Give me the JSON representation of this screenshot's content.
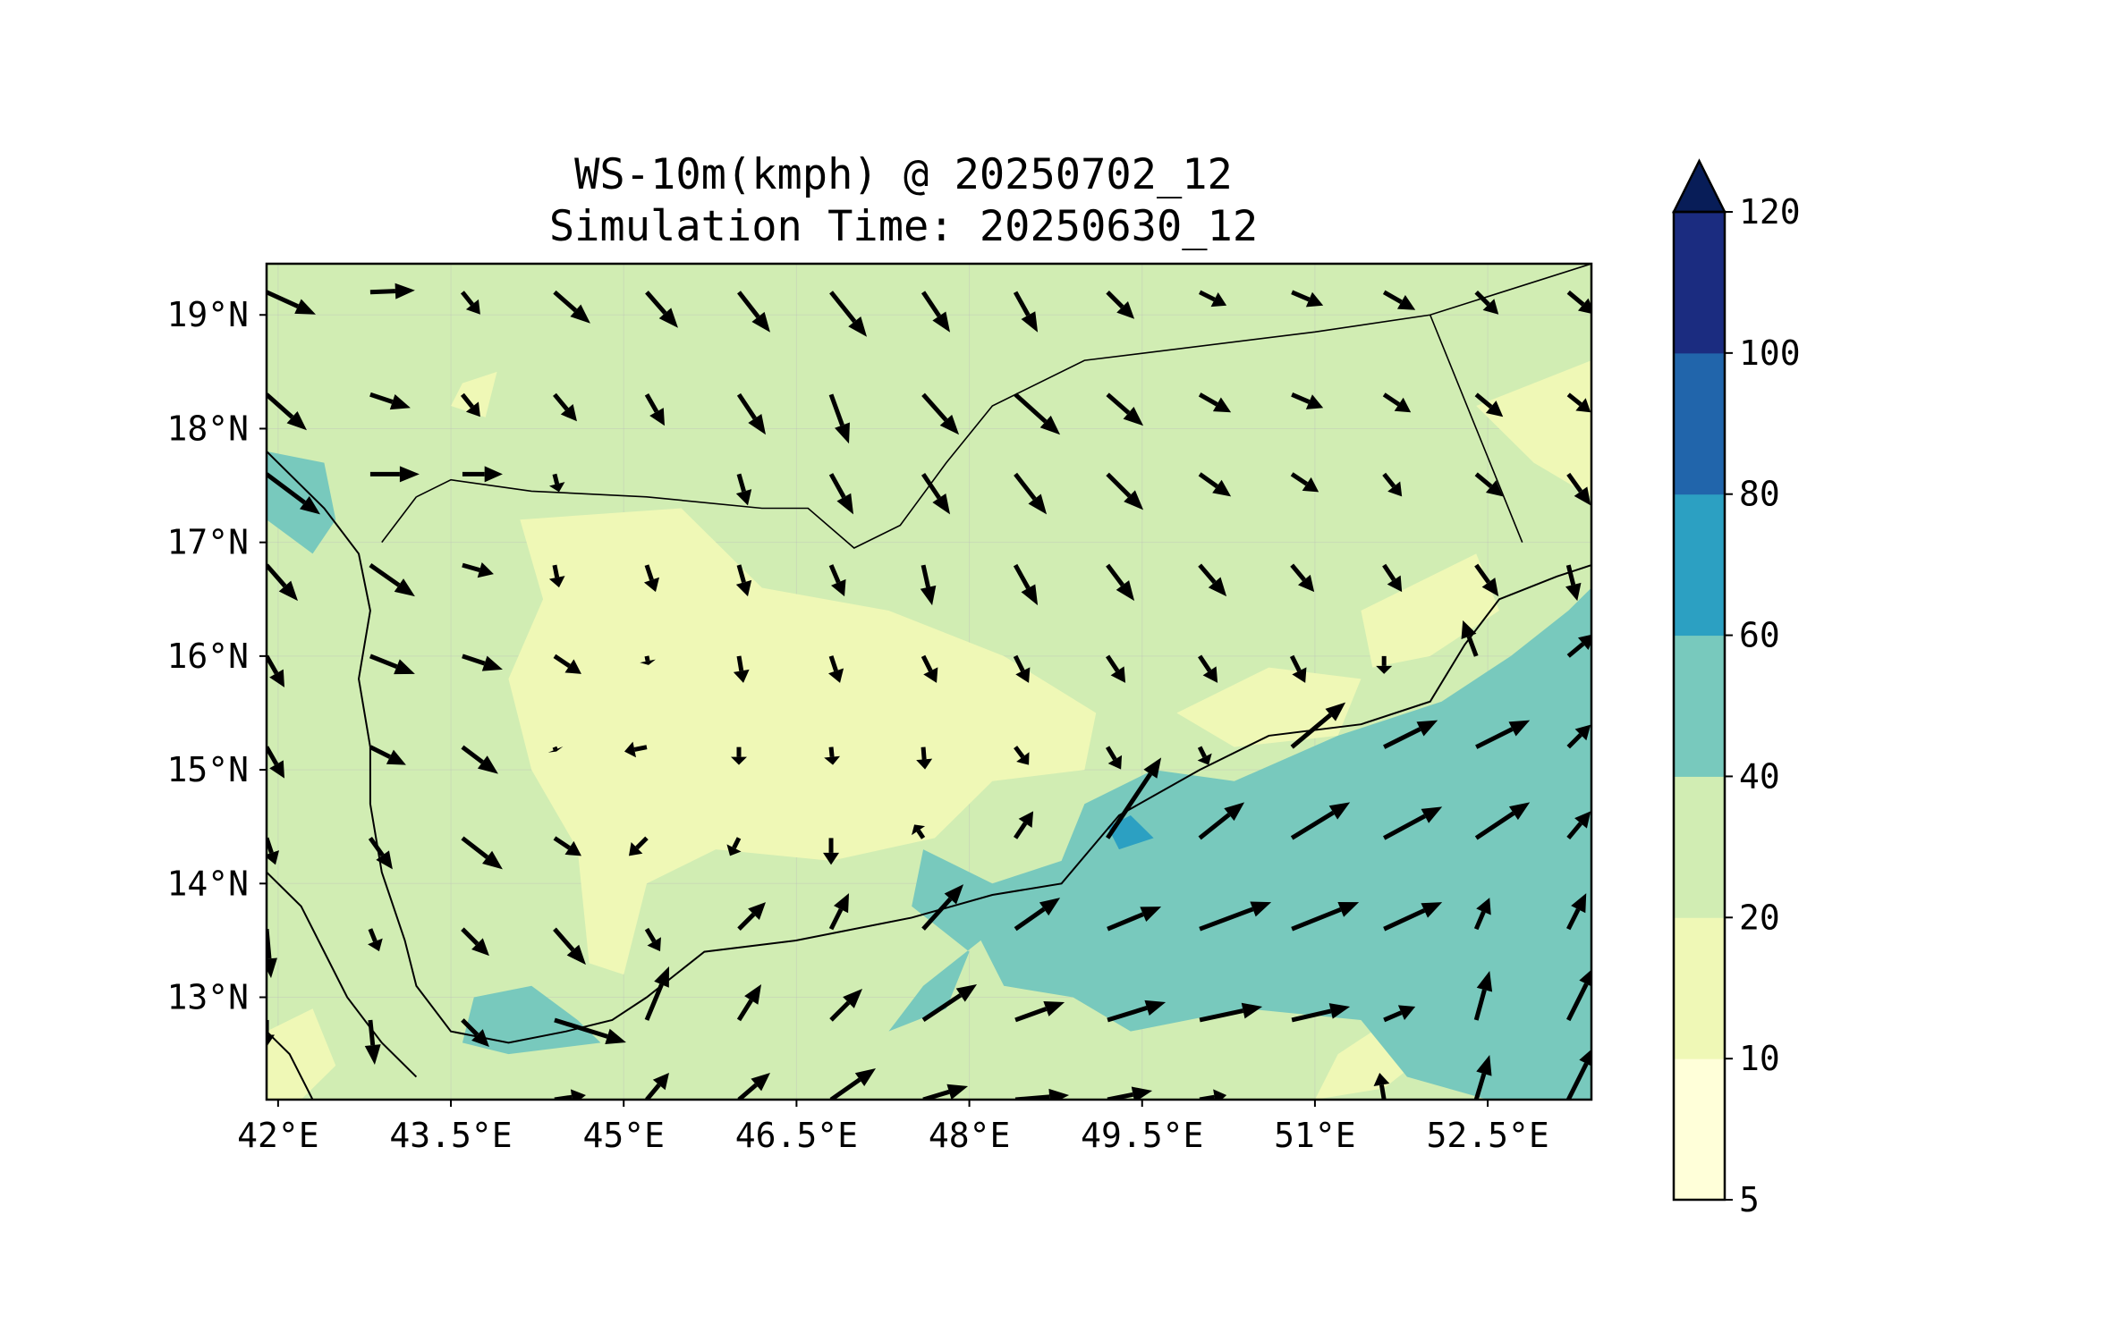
{
  "title_line1": "WS-10m(kmph) @ 20250702_12",
  "title_line2": "Simulation Time: 20250630_12",
  "map": {
    "lon_range": [
      41.9,
      53.4
    ],
    "lat_range": [
      12.1,
      19.45
    ],
    "lon_ticks": [
      {
        "value": 42.0,
        "label": "42°E"
      },
      {
        "value": 43.5,
        "label": "43.5°E"
      },
      {
        "value": 45.0,
        "label": "45°E"
      },
      {
        "value": 46.5,
        "label": "46.5°E"
      },
      {
        "value": 48.0,
        "label": "48°E"
      },
      {
        "value": 49.5,
        "label": "49.5°E"
      },
      {
        "value": 51.0,
        "label": "51°E"
      },
      {
        "value": 52.5,
        "label": "52.5°E"
      }
    ],
    "lat_ticks": [
      {
        "value": 19.0,
        "label": "19°N"
      },
      {
        "value": 18.0,
        "label": "18°N"
      },
      {
        "value": 17.0,
        "label": "17°N"
      },
      {
        "value": 16.0,
        "label": "16°N"
      },
      {
        "value": 15.0,
        "label": "15°N"
      },
      {
        "value": 14.0,
        "label": "14°N"
      },
      {
        "value": 13.0,
        "label": "13°N"
      }
    ],
    "background_class_color": "#d1edb3"
  },
  "colorbar": {
    "levels": [
      5,
      10,
      20,
      40,
      60,
      80,
      100,
      120
    ],
    "labels": [
      "5",
      "10",
      "20",
      "40",
      "60",
      "80",
      "100",
      "120"
    ],
    "colors": [
      "#ffffd9",
      "#eff8b6",
      "#d1edb3",
      "#78c9bd",
      "#2ca0c2",
      "#2165ab",
      "#1b2c80"
    ],
    "extend_color": "#081d58"
  },
  "speed_regions": [
    {
      "level": "10-20",
      "color": "#eff8b6",
      "points": [
        [
          44.1,
          17.2
        ],
        [
          45.5,
          17.3
        ],
        [
          46.2,
          16.6
        ],
        [
          47.3,
          16.4
        ],
        [
          48.3,
          16.0
        ],
        [
          49.1,
          15.5
        ],
        [
          49.0,
          15.0
        ],
        [
          48.2,
          14.9
        ],
        [
          47.7,
          14.4
        ],
        [
          46.8,
          14.2
        ],
        [
          45.8,
          14.3
        ],
        [
          45.2,
          14.0
        ],
        [
          45.0,
          13.2
        ],
        [
          44.7,
          13.3
        ],
        [
          44.6,
          14.3
        ],
        [
          44.2,
          15.0
        ],
        [
          44.0,
          15.8
        ],
        [
          44.3,
          16.5
        ]
      ]
    },
    {
      "level": "10-20",
      "color": "#eff8b6",
      "points": [
        [
          43.6,
          18.4
        ],
        [
          43.9,
          18.5
        ],
        [
          43.8,
          18.1
        ],
        [
          43.5,
          18.2
        ]
      ]
    },
    {
      "level": "10-20",
      "color": "#eff8b6",
      "points": [
        [
          52.4,
          18.2
        ],
        [
          53.4,
          18.6
        ],
        [
          53.4,
          17.4
        ],
        [
          52.9,
          17.7
        ]
      ]
    },
    {
      "level": "10-20",
      "color": "#eff8b6",
      "points": [
        [
          51.4,
          16.4
        ],
        [
          52.4,
          16.9
        ],
        [
          52.6,
          16.4
        ],
        [
          52.0,
          16.0
        ],
        [
          51.5,
          15.9
        ]
      ]
    },
    {
      "level": "10-20",
      "color": "#eff8b6",
      "points": [
        [
          51.2,
          12.5
        ],
        [
          51.8,
          12.9
        ],
        [
          52.3,
          13.3
        ],
        [
          52.1,
          12.6
        ],
        [
          51.6,
          12.2
        ],
        [
          51.0,
          12.1
        ]
      ]
    },
    {
      "level": "10-20",
      "color": "#eff8b6",
      "points": [
        [
          49.8,
          15.5
        ],
        [
          50.6,
          15.9
        ],
        [
          51.4,
          15.8
        ],
        [
          51.2,
          15.3
        ],
        [
          50.3,
          15.2
        ]
      ]
    },
    {
      "level": "10-20",
      "color": "#eff8b6",
      "points": [
        [
          41.9,
          12.7
        ],
        [
          42.3,
          12.9
        ],
        [
          42.5,
          12.4
        ],
        [
          42.2,
          12.1
        ],
        [
          41.9,
          12.1
        ]
      ]
    },
    {
      "level": "40-60",
      "color": "#78c9bd",
      "points": [
        [
          49.0,
          14.7
        ],
        [
          49.6,
          15.0
        ],
        [
          50.3,
          14.9
        ],
        [
          51.2,
          15.3
        ],
        [
          52.1,
          15.6
        ],
        [
          52.7,
          16.0
        ],
        [
          53.2,
          16.4
        ],
        [
          53.4,
          16.6
        ],
        [
          53.4,
          12.1
        ],
        [
          52.5,
          12.1
        ],
        [
          51.8,
          12.3
        ],
        [
          51.4,
          12.8
        ],
        [
          50.4,
          12.9
        ],
        [
          49.4,
          12.7
        ],
        [
          48.9,
          13.0
        ],
        [
          48.3,
          13.1
        ],
        [
          48.1,
          13.5
        ],
        [
          47.6,
          13.1
        ],
        [
          47.3,
          12.7
        ],
        [
          47.8,
          12.9
        ],
        [
          48.0,
          13.4
        ],
        [
          47.5,
          13.8
        ],
        [
          47.6,
          14.3
        ],
        [
          48.2,
          14.0
        ],
        [
          48.8,
          14.2
        ]
      ]
    },
    {
      "level": "40-60",
      "color": "#78c9bd",
      "points": [
        [
          41.9,
          17.8
        ],
        [
          42.4,
          17.7
        ],
        [
          42.5,
          17.2
        ],
        [
          42.3,
          16.9
        ],
        [
          41.9,
          17.2
        ]
      ]
    },
    {
      "level": "40-60",
      "color": "#78c9bd",
      "points": [
        [
          43.7,
          13.0
        ],
        [
          44.2,
          13.1
        ],
        [
          44.6,
          12.8
        ],
        [
          44.8,
          12.6
        ],
        [
          44.0,
          12.5
        ],
        [
          43.6,
          12.6
        ]
      ]
    },
    {
      "level": "60-80",
      "color": "#2ca0c2",
      "points": [
        [
          49.2,
          14.5
        ],
        [
          49.4,
          14.6
        ],
        [
          49.6,
          14.4
        ],
        [
          49.3,
          14.3
        ]
      ]
    }
  ],
  "coastlines": [
    [
      [
        41.9,
        17.8
      ],
      [
        42.4,
        17.3
      ],
      [
        42.7,
        16.9
      ],
      [
        42.8,
        16.4
      ],
      [
        42.7,
        15.8
      ],
      [
        42.8,
        15.2
      ],
      [
        42.8,
        14.7
      ],
      [
        42.9,
        14.1
      ],
      [
        43.1,
        13.5
      ],
      [
        43.2,
        13.1
      ],
      [
        43.5,
        12.7
      ],
      [
        44.0,
        12.6
      ],
      [
        44.5,
        12.7
      ],
      [
        44.9,
        12.8
      ],
      [
        45.2,
        13.0
      ],
      [
        45.7,
        13.4
      ],
      [
        46.5,
        13.5
      ],
      [
        47.5,
        13.7
      ],
      [
        48.2,
        13.9
      ],
      [
        48.8,
        14.0
      ],
      [
        49.3,
        14.6
      ],
      [
        50.0,
        15.0
      ],
      [
        50.6,
        15.3
      ],
      [
        51.4,
        15.4
      ],
      [
        52.0,
        15.6
      ],
      [
        52.3,
        16.1
      ],
      [
        52.6,
        16.5
      ],
      [
        53.1,
        16.7
      ],
      [
        53.4,
        16.8
      ]
    ],
    [
      [
        41.9,
        14.1
      ],
      [
        42.2,
        13.8
      ],
      [
        42.4,
        13.4
      ],
      [
        42.6,
        13.0
      ],
      [
        42.9,
        12.6
      ],
      [
        43.2,
        12.3
      ]
    ],
    [
      [
        41.9,
        12.7
      ],
      [
        42.1,
        12.5
      ],
      [
        42.3,
        12.1
      ]
    ]
  ],
  "borders": [
    [
      [
        43.2,
        17.4
      ],
      [
        43.5,
        17.55
      ],
      [
        44.2,
        17.45
      ],
      [
        45.2,
        17.4
      ],
      [
        46.2,
        17.3
      ],
      [
        46.6,
        17.3
      ],
      [
        47.0,
        16.95
      ],
      [
        47.4,
        17.15
      ],
      [
        47.8,
        17.7
      ],
      [
        48.2,
        18.2
      ],
      [
        49.0,
        18.6
      ],
      [
        51.0,
        18.85
      ],
      [
        52.0,
        19.0
      ],
      [
        53.4,
        19.45
      ]
    ],
    [
      [
        52.0,
        19.0
      ],
      [
        52.8,
        17.0
      ]
    ],
    [
      [
        43.2,
        17.4
      ],
      [
        42.9,
        17.0
      ]
    ]
  ],
  "wind_vectors": [
    [
      41.9,
      19.2,
      0.55,
      -0.25
    ],
    [
      42.8,
      19.2,
      0.5,
      0.02
    ],
    [
      43.6,
      19.2,
      0.2,
      -0.25
    ],
    [
      44.4,
      19.2,
      0.4,
      -0.35
    ],
    [
      45.2,
      19.2,
      0.35,
      -0.4
    ],
    [
      46.0,
      19.2,
      0.35,
      -0.45
    ],
    [
      46.8,
      19.2,
      0.4,
      -0.5
    ],
    [
      47.6,
      19.2,
      0.3,
      -0.45
    ],
    [
      48.4,
      19.2,
      0.25,
      -0.45
    ],
    [
      49.2,
      19.2,
      0.3,
      -0.3
    ],
    [
      50.0,
      19.2,
      0.3,
      -0.15
    ],
    [
      50.8,
      19.2,
      0.35,
      -0.15
    ],
    [
      51.6,
      19.2,
      0.35,
      -0.2
    ],
    [
      52.4,
      19.2,
      0.25,
      -0.25
    ],
    [
      53.2,
      19.2,
      0.3,
      -0.25
    ],
    [
      41.9,
      18.3,
      0.45,
      -0.4
    ],
    [
      42.8,
      18.3,
      0.45,
      -0.15
    ],
    [
      43.6,
      18.3,
      0.2,
      -0.25
    ],
    [
      44.4,
      18.3,
      0.25,
      -0.3
    ],
    [
      45.2,
      18.3,
      0.2,
      -0.35
    ],
    [
      46.0,
      18.3,
      0.3,
      -0.45
    ],
    [
      46.8,
      18.3,
      0.2,
      -0.55
    ],
    [
      47.6,
      18.3,
      0.4,
      -0.45
    ],
    [
      48.4,
      18.3,
      0.5,
      -0.45
    ],
    [
      49.2,
      18.3,
      0.4,
      -0.35
    ],
    [
      50.0,
      18.3,
      0.35,
      -0.2
    ],
    [
      50.8,
      18.3,
      0.35,
      -0.15
    ],
    [
      51.6,
      18.3,
      0.3,
      -0.2
    ],
    [
      52.4,
      18.3,
      0.3,
      -0.25
    ],
    [
      53.2,
      18.3,
      0.25,
      -0.2
    ],
    [
      41.9,
      17.6,
      0.6,
      -0.45
    ],
    [
      42.8,
      17.6,
      0.55,
      0.0
    ],
    [
      43.6,
      17.6,
      0.45,
      0.0
    ],
    [
      44.4,
      17.6,
      0.05,
      -0.2
    ],
    [
      46.0,
      17.6,
      0.1,
      -0.35
    ],
    [
      46.8,
      17.6,
      0.25,
      -0.45
    ],
    [
      47.6,
      17.6,
      0.3,
      -0.45
    ],
    [
      48.4,
      17.6,
      0.35,
      -0.45
    ],
    [
      49.2,
      17.6,
      0.4,
      -0.4
    ],
    [
      50.0,
      17.6,
      0.35,
      -0.25
    ],
    [
      50.8,
      17.6,
      0.3,
      -0.2
    ],
    [
      51.6,
      17.6,
      0.2,
      -0.25
    ],
    [
      52.4,
      17.6,
      0.3,
      -0.25
    ],
    [
      53.2,
      17.6,
      0.25,
      -0.35
    ],
    [
      41.9,
      16.8,
      0.35,
      -0.4
    ],
    [
      42.8,
      16.8,
      0.5,
      -0.35
    ],
    [
      43.6,
      16.8,
      0.35,
      -0.1
    ],
    [
      44.4,
      16.8,
      0.05,
      -0.25
    ],
    [
      45.2,
      16.8,
      0.1,
      -0.3
    ],
    [
      46.0,
      16.8,
      0.1,
      -0.35
    ],
    [
      46.8,
      16.8,
      0.15,
      -0.35
    ],
    [
      47.6,
      16.8,
      0.1,
      -0.45
    ],
    [
      48.4,
      16.8,
      0.25,
      -0.45
    ],
    [
      49.2,
      16.8,
      0.3,
      -0.4
    ],
    [
      50.0,
      16.8,
      0.3,
      -0.35
    ],
    [
      50.8,
      16.8,
      0.25,
      -0.3
    ],
    [
      51.6,
      16.8,
      0.2,
      -0.3
    ],
    [
      52.4,
      16.8,
      0.25,
      -0.35
    ],
    [
      53.2,
      16.8,
      0.1,
      -0.4
    ],
    [
      41.9,
      16.0,
      0.2,
      -0.35
    ],
    [
      42.8,
      16.0,
      0.5,
      -0.2
    ],
    [
      43.6,
      16.0,
      0.45,
      -0.15
    ],
    [
      44.4,
      16.0,
      0.3,
      -0.2
    ],
    [
      45.2,
      16.0,
      0.02,
      -0.1
    ],
    [
      46.0,
      16.0,
      0.05,
      -0.3
    ],
    [
      46.8,
      16.0,
      0.1,
      -0.3
    ],
    [
      47.6,
      16.0,
      0.15,
      -0.3
    ],
    [
      48.4,
      16.0,
      0.15,
      -0.3
    ],
    [
      49.2,
      16.0,
      0.2,
      -0.3
    ],
    [
      50.0,
      16.0,
      0.2,
      -0.3
    ],
    [
      50.8,
      16.0,
      0.15,
      -0.3
    ],
    [
      51.6,
      16.0,
      0.0,
      -0.2
    ],
    [
      52.4,
      16.0,
      -0.15,
      0.4
    ],
    [
      53.2,
      16.0,
      0.3,
      0.25
    ],
    [
      41.9,
      15.2,
      0.2,
      -0.35
    ],
    [
      42.8,
      15.2,
      0.4,
      -0.2
    ],
    [
      43.6,
      15.2,
      0.4,
      -0.3
    ],
    [
      44.4,
      15.2,
      0.02,
      -0.05
    ],
    [
      45.2,
      15.2,
      -0.25,
      -0.05
    ],
    [
      46.0,
      15.2,
      0.0,
      -0.2
    ],
    [
      46.8,
      15.2,
      0.02,
      -0.2
    ],
    [
      47.6,
      15.2,
      0.02,
      -0.25
    ],
    [
      48.4,
      15.2,
      0.15,
      -0.2
    ],
    [
      49.2,
      15.2,
      0.15,
      -0.25
    ],
    [
      50.0,
      15.2,
      0.1,
      -0.2
    ],
    [
      50.8,
      15.2,
      0.6,
      0.5
    ],
    [
      51.6,
      15.2,
      0.6,
      0.3
    ],
    [
      52.4,
      15.2,
      0.6,
      0.3
    ],
    [
      53.2,
      15.2,
      0.25,
      0.25
    ],
    [
      41.9,
      14.4,
      0.1,
      -0.3
    ],
    [
      42.8,
      14.4,
      0.25,
      -0.35
    ],
    [
      43.6,
      14.4,
      0.45,
      -0.35
    ],
    [
      44.4,
      14.4,
      0.3,
      -0.2
    ],
    [
      45.2,
      14.4,
      -0.2,
      -0.2
    ],
    [
      46.0,
      14.4,
      -0.1,
      -0.2
    ],
    [
      46.8,
      14.4,
      0.0,
      -0.3
    ],
    [
      47.6,
      14.4,
      -0.1,
      0.15
    ],
    [
      48.4,
      14.4,
      0.2,
      0.3
    ],
    [
      49.2,
      14.4,
      0.6,
      0.9
    ],
    [
      50.0,
      14.4,
      0.5,
      0.4
    ],
    [
      50.8,
      14.4,
      0.65,
      0.4
    ],
    [
      51.6,
      14.4,
      0.65,
      0.35
    ],
    [
      52.4,
      14.4,
      0.6,
      0.4
    ],
    [
      53.2,
      14.4,
      0.25,
      0.3
    ],
    [
      41.9,
      13.6,
      0.05,
      -0.55
    ],
    [
      42.8,
      13.6,
      0.1,
      -0.25
    ],
    [
      43.6,
      13.6,
      0.3,
      -0.3
    ],
    [
      44.4,
      13.6,
      0.35,
      -0.4
    ],
    [
      45.2,
      13.6,
      0.15,
      -0.25
    ],
    [
      46.0,
      13.6,
      0.3,
      0.3
    ],
    [
      46.8,
      13.6,
      0.2,
      0.4
    ],
    [
      47.6,
      13.6,
      0.45,
      0.5
    ],
    [
      48.4,
      13.6,
      0.5,
      0.35
    ],
    [
      49.2,
      13.6,
      0.6,
      0.25
    ],
    [
      50.0,
      13.6,
      0.8,
      0.3
    ],
    [
      50.8,
      13.6,
      0.75,
      0.3
    ],
    [
      51.6,
      13.6,
      0.65,
      0.3
    ],
    [
      52.4,
      13.6,
      0.15,
      0.35
    ],
    [
      53.2,
      13.6,
      0.2,
      0.4
    ],
    [
      41.9,
      12.8,
      0.0,
      -0.3
    ],
    [
      42.8,
      12.8,
      0.05,
      -0.5
    ],
    [
      43.6,
      12.8,
      0.3,
      -0.3
    ],
    [
      44.4,
      12.8,
      0.8,
      -0.25
    ],
    [
      45.2,
      12.8,
      0.25,
      0.6
    ],
    [
      46.0,
      12.8,
      0.25,
      0.4
    ],
    [
      46.8,
      12.8,
      0.35,
      0.35
    ],
    [
      47.6,
      12.8,
      0.6,
      0.4
    ],
    [
      48.4,
      12.8,
      0.55,
      0.2
    ],
    [
      49.2,
      12.8,
      0.65,
      0.2
    ],
    [
      50.0,
      12.8,
      0.7,
      0.15
    ],
    [
      50.8,
      12.8,
      0.65,
      0.15
    ],
    [
      51.6,
      12.8,
      0.35,
      0.15
    ],
    [
      52.4,
      12.8,
      0.15,
      0.55
    ],
    [
      53.2,
      12.8,
      0.3,
      0.6
    ],
    [
      44.4,
      12.1,
      0.35,
      0.05
    ],
    [
      45.2,
      12.1,
      0.25,
      0.3
    ],
    [
      46.0,
      12.1,
      0.35,
      0.3
    ],
    [
      46.8,
      12.1,
      0.5,
      0.35
    ],
    [
      47.6,
      12.1,
      0.5,
      0.15
    ],
    [
      48.4,
      12.1,
      0.6,
      0.05
    ],
    [
      49.2,
      12.1,
      0.5,
      0.1
    ],
    [
      50.0,
      12.1,
      0.3,
      0.05
    ],
    [
      51.6,
      12.1,
      -0.05,
      0.3
    ],
    [
      52.4,
      12.1,
      0.15,
      0.5
    ],
    [
      53.2,
      12.1,
      0.3,
      0.6
    ]
  ]
}
